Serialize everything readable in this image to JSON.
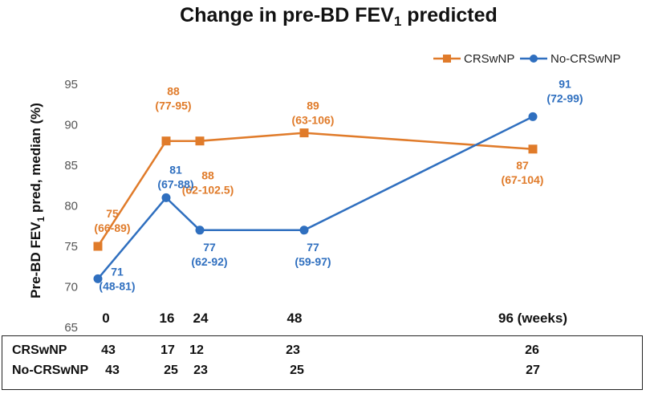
{
  "chart_data": {
    "type": "line",
    "title_parts": [
      "Change in pre-BD FEV",
      "1",
      " predicted"
    ],
    "ylabel_parts": [
      "Pre-BD FEV",
      "1",
      " pred, median (%)"
    ],
    "ylim": [
      65,
      95
    ],
    "yticks": [
      "65",
      "70",
      "75",
      "80",
      "85",
      "90",
      "95"
    ],
    "x": [
      0,
      16,
      24,
      48,
      96
    ],
    "xtick_labels": [
      "0",
      "16",
      "24",
      "48",
      "96 (weeks)"
    ],
    "legend_position": "top-right",
    "series": [
      {
        "name": "CRSwNP",
        "color": "#e07b2a",
        "marker": "square",
        "values": [
          75,
          88,
          88,
          89,
          87
        ],
        "labels": [
          [
            "75",
            "(66-89)"
          ],
          [
            "88",
            "(77-95)"
          ],
          [
            "88",
            "(62-102.5)"
          ],
          [
            "89",
            "(63-106)"
          ],
          [
            "87",
            "(67-104)"
          ]
        ]
      },
      {
        "name": "No-CRSwNP",
        "color": "#2f6fbf",
        "marker": "circle",
        "values": [
          71,
          81,
          77,
          77,
          91
        ],
        "labels": [
          [
            "71",
            "(48-81)"
          ],
          [
            "81",
            "(67-88)"
          ],
          [
            "77",
            "(62-92)"
          ],
          [
            "77",
            "(59-97)"
          ],
          [
            "91",
            "(72-99)"
          ]
        ]
      }
    ]
  },
  "n_table": {
    "rows": [
      {
        "label": "CRSwNP",
        "values": [
          "43",
          "17",
          "12",
          "23",
          "26"
        ]
      },
      {
        "label": "No-CRSwNP",
        "values": [
          "43",
          "25",
          "23",
          "25",
          "27"
        ]
      }
    ]
  }
}
